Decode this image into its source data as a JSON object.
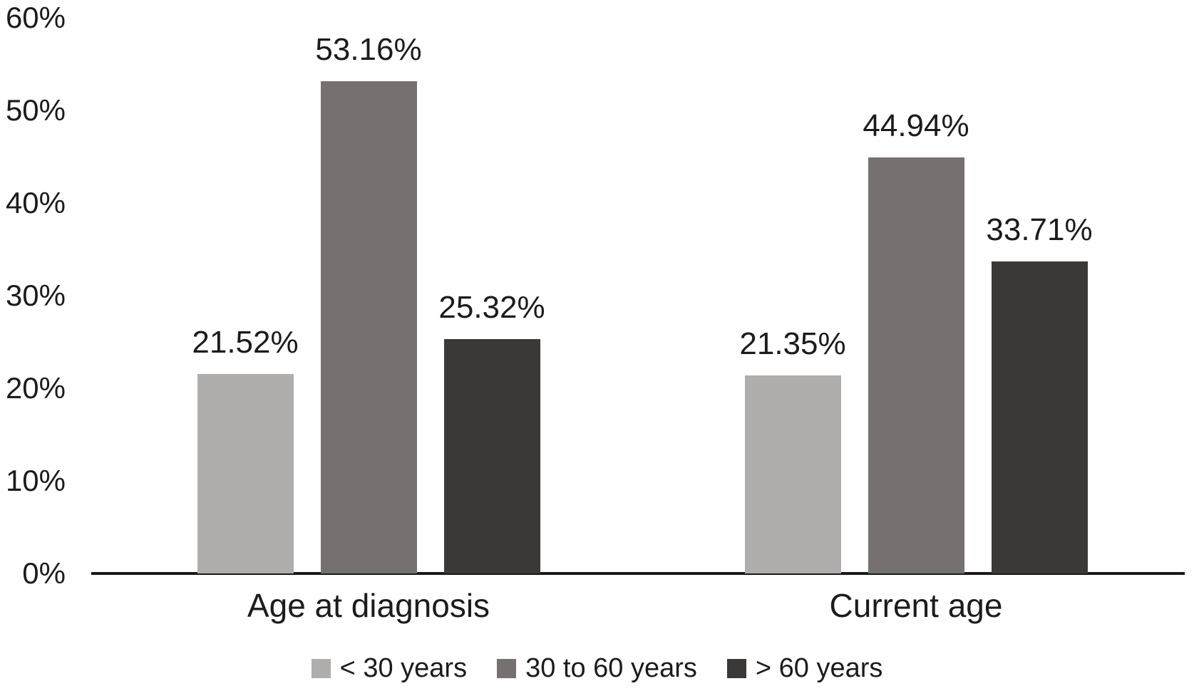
{
  "chart_data": {
    "type": "bar",
    "title": "",
    "xlabel": "",
    "ylabel": "",
    "categories": [
      "Age at diagnosis",
      "Current age"
    ],
    "series": [
      {
        "name": "< 30 years",
        "color": "#b0adad",
        "values": [
          21.52,
          21.35
        ],
        "labels": [
          "21.52%",
          "21.35%"
        ]
      },
      {
        "name": "30 to 60 years",
        "color": "#767170",
        "values": [
          53.16,
          44.94
        ],
        "labels": [
          "53.16%",
          "44.94%"
        ]
      },
      {
        "name": "> 60 years",
        "color": "#3b3838",
        "values": [
          25.32,
          33.71
        ],
        "labels": [
          "25.32%",
          "33.71%"
        ]
      }
    ],
    "y_axis": {
      "min": 0,
      "max": 60,
      "step": 10,
      "unit": "%",
      "tick_labels": [
        "0%",
        "10%",
        "20%",
        "30%",
        "40%",
        "50%",
        "60%"
      ]
    },
    "legend": {
      "position": "bottom",
      "entries": [
        "< 30 years",
        "30 to 60 years",
        "> 60 years"
      ]
    },
    "grid": false,
    "axis_color": "#1a1a1a",
    "background_color": "#ffffff",
    "text_color": "#1c1c1c"
  }
}
